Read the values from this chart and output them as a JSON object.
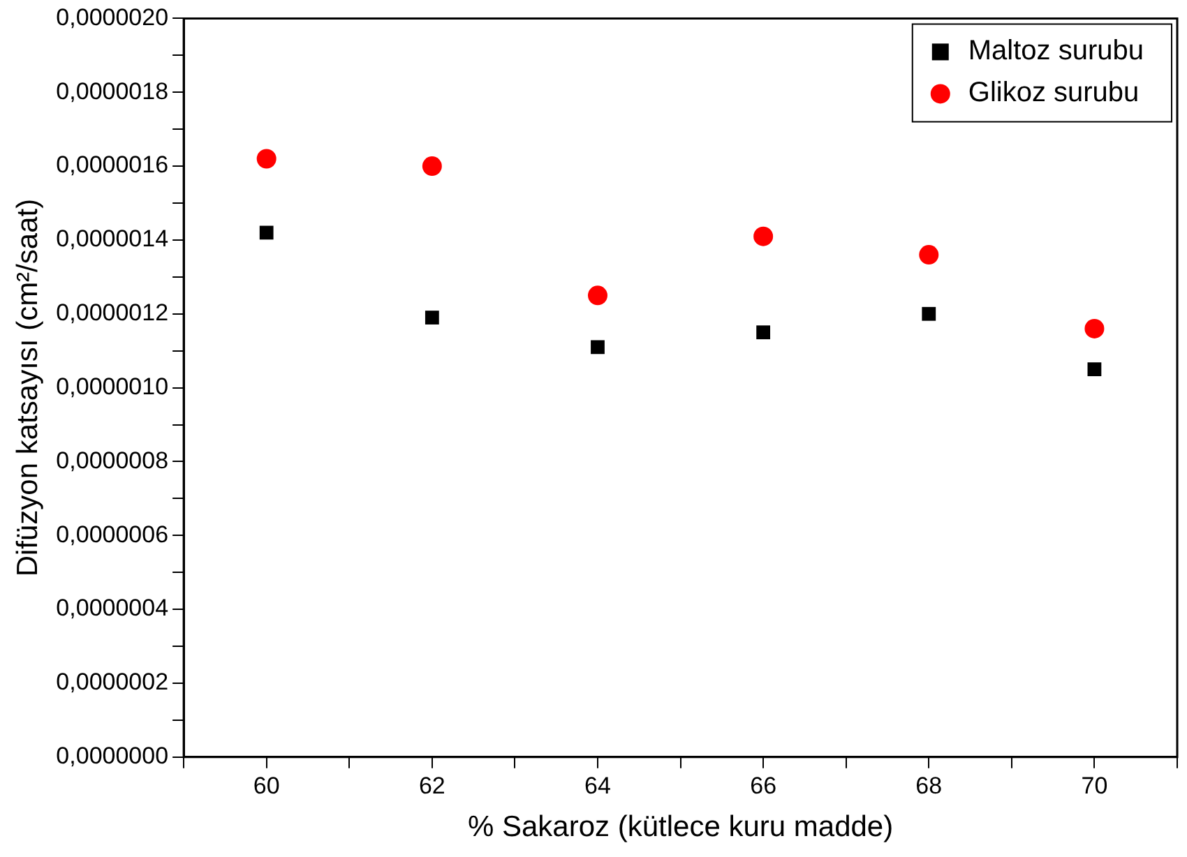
{
  "chart_data": {
    "type": "scatter",
    "xlabel": "% Sakaroz (kütlece kuru madde)",
    "ylabel": "Difüzyon katsayısı (cm²/saat)",
    "x": [
      60,
      62,
      64,
      66,
      68,
      70
    ],
    "series": [
      {
        "name": "Maltoz surubu",
        "color": "#000000",
        "marker": "square",
        "values": [
          1.42e-06,
          1.19e-06,
          1.11e-06,
          1.15e-06,
          1.2e-06,
          1.05e-06
        ]
      },
      {
        "name": "Glikoz surubu",
        "color": "#ff0000",
        "marker": "circle",
        "values": [
          1.62e-06,
          1.6e-06,
          1.25e-06,
          1.41e-06,
          1.36e-06,
          1.16e-06
        ]
      }
    ],
    "xlim": [
      59,
      71
    ],
    "xticks": [
      {
        "value": 59,
        "label": null
      },
      60,
      {
        "value": 61,
        "label": null
      },
      62,
      {
        "value": 63,
        "label": null
      },
      64,
      {
        "value": 65,
        "label": null
      },
      66,
      {
        "value": 67,
        "label": null
      },
      68,
      {
        "value": 69,
        "label": null
      },
      70,
      {
        "value": 71,
        "label": null
      }
    ],
    "ylim": [
      0,
      2e-06
    ],
    "yticks": [
      {
        "value": 0,
        "label": "0,0000000"
      },
      {
        "value": 1e-07,
        "label": null
      },
      {
        "value": 2e-07,
        "label": "0,0000002"
      },
      {
        "value": 3e-07,
        "label": null
      },
      {
        "value": 4e-07,
        "label": "0,0000004"
      },
      {
        "value": 5e-07,
        "label": null
      },
      {
        "value": 6e-07,
        "label": "0,0000006"
      },
      {
        "value": 7e-07,
        "label": null
      },
      {
        "value": 8e-07,
        "label": "0,0000008"
      },
      {
        "value": 9e-07,
        "label": null
      },
      {
        "value": 1e-06,
        "label": "0,0000010"
      },
      {
        "value": 1.1e-06,
        "label": null
      },
      {
        "value": 1.2e-06,
        "label": "0,0000012"
      },
      {
        "value": 1.3e-06,
        "label": null
      },
      {
        "value": 1.4e-06,
        "label": "0,0000014"
      },
      {
        "value": 1.5e-06,
        "label": null
      },
      {
        "value": 1.6e-06,
        "label": "0,0000016"
      },
      {
        "value": 1.7e-06,
        "label": null
      },
      {
        "value": 1.8e-06,
        "label": "0,0000018"
      },
      {
        "value": 1.9e-06,
        "label": null
      },
      {
        "value": 2e-06,
        "label": "0,0000020"
      }
    ],
    "grid": false,
    "legend": "top right"
  }
}
